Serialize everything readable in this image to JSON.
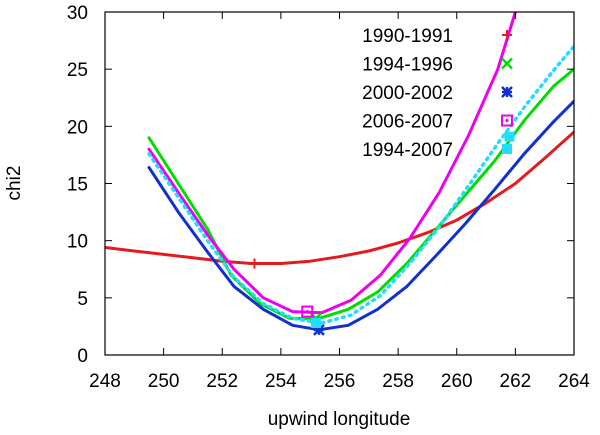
{
  "chart_data": {
    "type": "line",
    "title": "",
    "xlabel": "upwind longitude",
    "ylabel": "chi2",
    "xlim": [
      248,
      264
    ],
    "ylim": [
      0,
      30
    ],
    "xticks": [
      248,
      250,
      252,
      254,
      256,
      258,
      260,
      262,
      264
    ],
    "yticks": [
      0,
      5,
      10,
      15,
      20,
      25,
      30
    ],
    "legend_position": "top-right",
    "series": [
      {
        "name": "1990-1991",
        "color": "#e41a1c",
        "marker": "plus",
        "style": "solid",
        "x": [
          248,
          249,
          250,
          251,
          252,
          253,
          254,
          255,
          256,
          257,
          258,
          259,
          260,
          261,
          262,
          263,
          264
        ],
        "y": [
          9.4,
          9.1,
          8.8,
          8.5,
          8.2,
          8.0,
          8.0,
          8.2,
          8.6,
          9.1,
          9.8,
          10.7,
          11.8,
          13.3,
          15.0,
          17.2,
          19.5
        ],
        "best_fit": {
          "x": 253.1,
          "y": 8.0
        }
      },
      {
        "name": "1994-1996",
        "color": "#00dd00",
        "marker": "x",
        "style": "solid",
        "x": [
          249.5,
          250.5,
          251.5,
          252.3,
          253.3,
          254.3,
          255.3,
          256.3,
          257.3,
          258.3,
          259.3,
          260.3,
          261.3,
          262.3,
          263.3,
          264
        ],
        "y": [
          19.0,
          15.0,
          11.0,
          7.0,
          4.5,
          3.2,
          3.2,
          4.0,
          5.5,
          8.0,
          11.0,
          14.0,
          17.0,
          20.5,
          23.5,
          25.0
        ],
        "best_fit": {
          "x": 255.2,
          "y": 3.2
        }
      },
      {
        "name": "2000-2002",
        "color": "#1030d0",
        "marker": "star",
        "style": "solid",
        "x": [
          249.5,
          250.5,
          251.5,
          252.4,
          253.4,
          254.4,
          255.3,
          256.3,
          257.3,
          258.3,
          259.3,
          260.3,
          261.3,
          262.3,
          263.3,
          264
        ],
        "y": [
          16.4,
          12.5,
          9.0,
          6.0,
          4.0,
          2.6,
          2.2,
          2.6,
          4.0,
          6.0,
          8.7,
          11.5,
          14.5,
          17.6,
          20.4,
          22.2
        ],
        "best_fit": {
          "x": 255.3,
          "y": 2.2
        }
      },
      {
        "name": "2006-2007",
        "color": "#ee00ee",
        "marker": "square-dot",
        "style": "solid",
        "x": [
          249.5,
          250.5,
          251.5,
          252.4,
          253.4,
          254.4,
          255.4,
          256.4,
          257.4,
          258.4,
          259.4,
          260.4,
          261.4,
          262
        ],
        "y": [
          18.0,
          14.2,
          10.5,
          7.5,
          5.0,
          3.8,
          3.7,
          4.8,
          7.0,
          10.2,
          14.2,
          19.2,
          25.0,
          30.0
        ],
        "best_fit": {
          "x": 254.9,
          "y": 3.8
        }
      },
      {
        "name": "1994-2007",
        "color": "#22ddff",
        "marker": "filled-square",
        "style": "dotted",
        "x": [
          249.5,
          250.5,
          251.5,
          252.4,
          253.4,
          254.4,
          255.4,
          256.4,
          257.4,
          258.4,
          259.4,
          260.4,
          261.4,
          262.4,
          263.4,
          264
        ],
        "y": [
          17.6,
          13.8,
          10.0,
          6.8,
          4.5,
          3.2,
          2.8,
          3.5,
          5.2,
          8.0,
          11.2,
          14.8,
          18.5,
          22.0,
          25.2,
          27.0
        ],
        "best_fit": {
          "x": 255.2,
          "y": 2.8
        }
      }
    ],
    "extra_marks": [
      {
        "series": "1994-2007",
        "x": 261.8,
        "y": 19.1
      }
    ]
  }
}
